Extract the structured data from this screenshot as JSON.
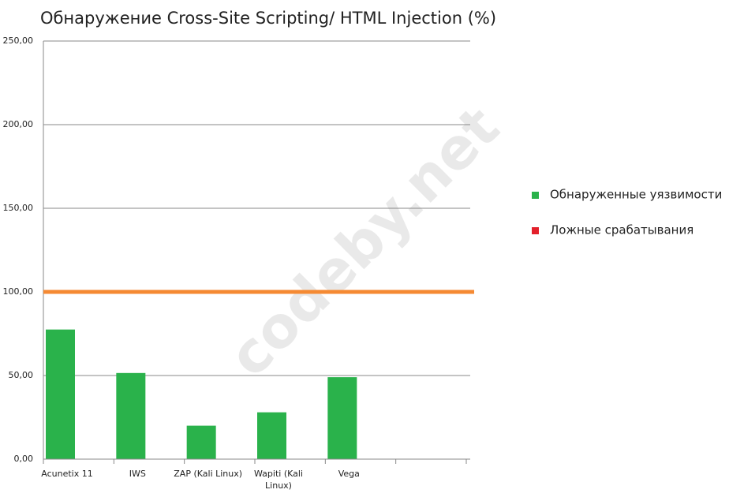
{
  "chart_data": {
    "type": "bar",
    "title": "Обнаружение Cross-Site Scripting/ HTML Injection (%)",
    "categories": [
      "Acunetix 11",
      "IWS",
      "ZAP (Kali Linux)",
      "Wapiti (Kali Linux)",
      "Vega",
      null
    ],
    "series": [
      {
        "name": "Обнаруженные уязвимости",
        "color": "#2ab24b",
        "values": [
          77.5,
          51.5,
          20,
          28,
          49,
          null
        ]
      },
      {
        "name": "Ложные срабатывания",
        "color": "#e3202b",
        "values": [
          0,
          0,
          0,
          0,
          0,
          null
        ]
      }
    ],
    "reference_line": {
      "value": 100,
      "color": "#f58a33"
    },
    "ylim": [
      0,
      250
    ],
    "yticks": [
      {
        "value": 0,
        "label": "0,00"
      },
      {
        "value": 50,
        "label": "50,00"
      },
      {
        "value": 100,
        "label": "100,00"
      },
      {
        "value": 150,
        "label": "150,00"
      },
      {
        "value": 200,
        "label": "200,00"
      },
      {
        "value": 250,
        "label": "250,00"
      }
    ],
    "grid": true,
    "legend": "right",
    "watermark": "codeby.net"
  }
}
